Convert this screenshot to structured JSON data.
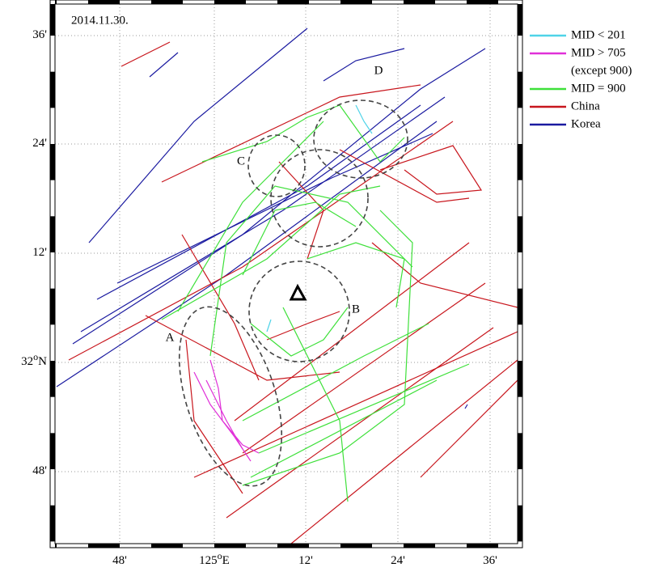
{
  "map": {
    "date": "2014.11.30.",
    "y_labels": [
      {
        "main": "36'"
      },
      {
        "main": "24'"
      },
      {
        "main": "12'"
      },
      {
        "main": "32",
        "sup": "o",
        "suffix": "N"
      },
      {
        "main": "48'"
      }
    ],
    "x_labels": [
      {
        "main": "48'"
      },
      {
        "main": "125",
        "sup": "o",
        "suffix": "E"
      },
      {
        "main": "12'"
      },
      {
        "main": "24'"
      },
      {
        "main": "36'"
      }
    ],
    "regions": [
      "A",
      "B",
      "C",
      "D"
    ],
    "legend": [
      {
        "label": "MID < 201",
        "color": "#4fd3e8"
      },
      {
        "label": "MID > 705",
        "note": "(except 900)",
        "color": "#e030d8"
      },
      {
        "label": "MID = 900",
        "color": "#3ee03a"
      },
      {
        "label": "China",
        "color": "#c8161d"
      },
      {
        "label": "Korea",
        "color": "#1a1aa0"
      }
    ]
  }
}
